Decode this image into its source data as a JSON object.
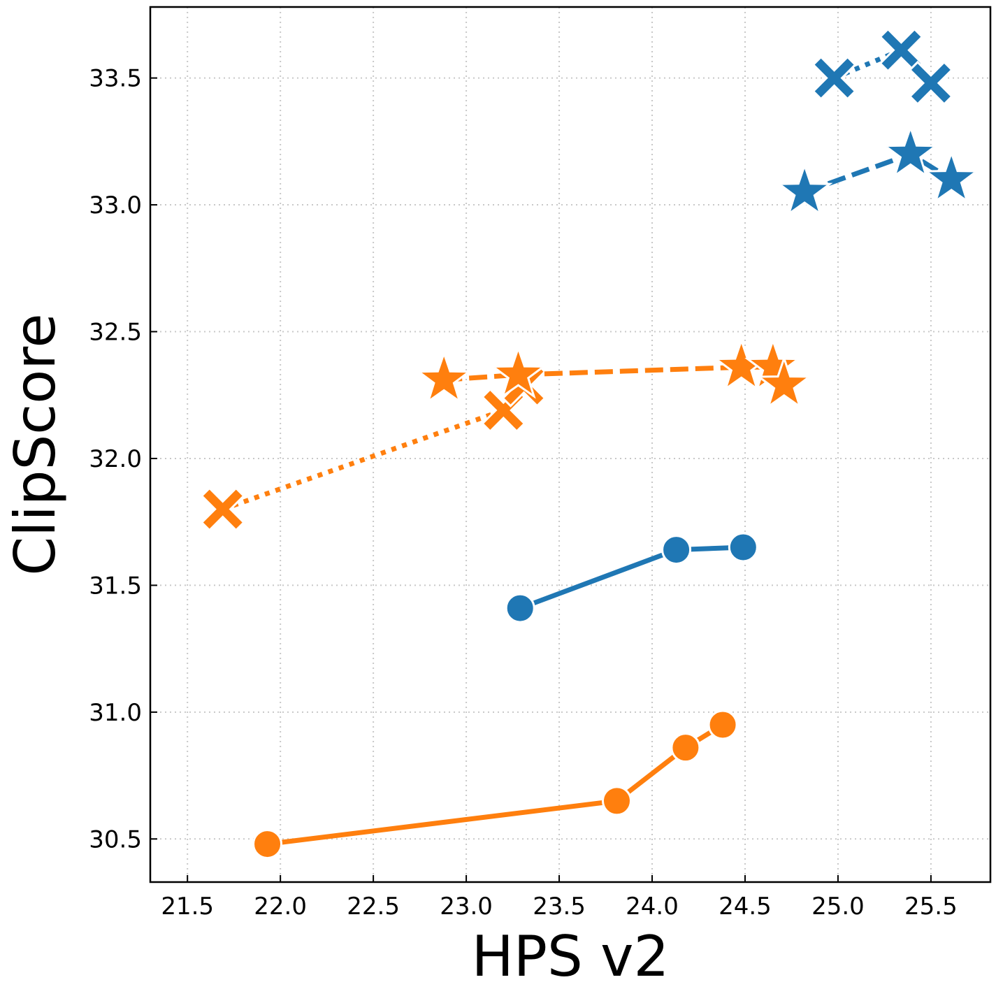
{
  "chart_data": {
    "type": "line",
    "xlabel": "HPS v2",
    "ylabel": "ClipScore",
    "xlim": [
      21.3,
      25.82
    ],
    "ylim": [
      30.33,
      33.78
    ],
    "xticks": [
      "21.5",
      "22.0",
      "22.5",
      "23.0",
      "23.5",
      "24.0",
      "24.5",
      "25.0",
      "25.5"
    ],
    "yticks": [
      "30.5",
      "31.0",
      "31.5",
      "32.0",
      "32.5",
      "33.0",
      "33.5"
    ],
    "grid": true,
    "legend": "none",
    "colors": {
      "blue": "#1f77b4",
      "orange": "#ff7f0e"
    },
    "series": [
      {
        "color": "blue",
        "linestyle": "dotted",
        "marker": "x",
        "points": [
          [
            24.98,
            33.5
          ],
          [
            25.34,
            33.61
          ],
          [
            25.5,
            33.48
          ]
        ]
      },
      {
        "color": "blue",
        "linestyle": "dashed",
        "marker": "star",
        "points": [
          [
            24.82,
            33.05
          ],
          [
            25.39,
            33.2
          ],
          [
            25.61,
            33.1
          ]
        ]
      },
      {
        "color": "blue",
        "linestyle": "solid",
        "marker": "circle",
        "points": [
          [
            23.29,
            31.41
          ],
          [
            24.13,
            31.64
          ],
          [
            24.49,
            31.65
          ]
        ]
      },
      {
        "color": "orange",
        "linestyle": "dotted",
        "marker": "x",
        "points": [
          [
            21.69,
            31.8
          ],
          [
            23.2,
            32.19
          ],
          [
            23.31,
            32.29
          ]
        ]
      },
      {
        "color": "orange",
        "linestyle": "dashed",
        "marker": "star",
        "points": [
          [
            22.88,
            32.31
          ],
          [
            23.28,
            32.33
          ],
          [
            24.48,
            32.36
          ],
          [
            24.65,
            32.36
          ],
          [
            24.71,
            32.29
          ]
        ]
      },
      {
        "color": "orange",
        "linestyle": "solid",
        "marker": "circle",
        "points": [
          [
            21.93,
            30.48
          ],
          [
            23.81,
            30.65
          ],
          [
            24.18,
            30.86
          ],
          [
            24.38,
            30.95
          ]
        ]
      }
    ]
  }
}
